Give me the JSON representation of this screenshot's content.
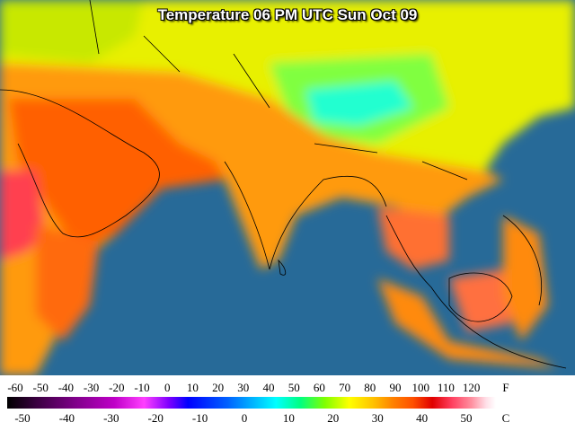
{
  "title": "Temperature 06 PM UTC Sun Oct 09",
  "legend": {
    "fahrenheit": {
      "labels": [
        -60,
        -50,
        -40,
        -30,
        -20,
        -10,
        0,
        10,
        20,
        30,
        40,
        50,
        60,
        70,
        80,
        90,
        100,
        110,
        120
      ],
      "unit": "F"
    },
    "celsius": {
      "labels": [
        -50,
        -40,
        -30,
        -20,
        -10,
        0,
        10,
        20,
        30,
        40,
        50
      ],
      "unit": "C"
    }
  }
}
